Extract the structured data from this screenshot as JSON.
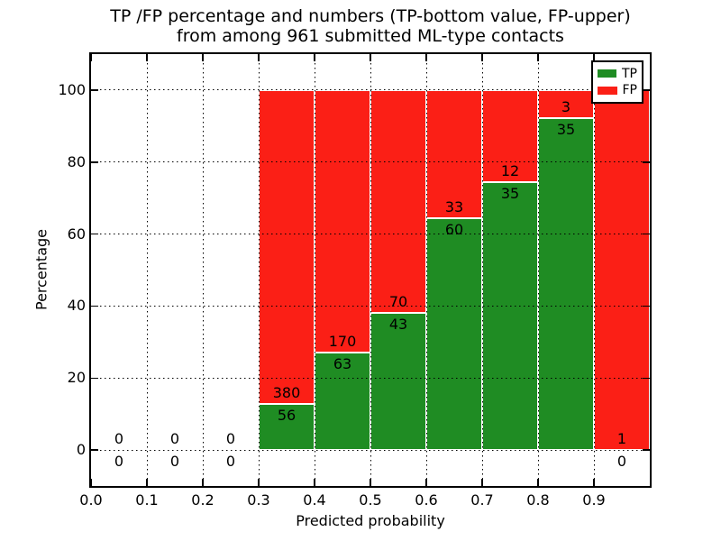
{
  "chart_data": {
    "type": "bar",
    "stacked": true,
    "normalized": "percent",
    "title_lines": [
      "TP /FP percentage and numbers (TP-bottom value, FP-upper)",
      "from among 961 submitted ML-type contacts"
    ],
    "title": "TP /FP percentage and numbers (TP-bottom value, FP-upper) from among 961 submitted ML-type contacts",
    "xlabel": "Predicted probability",
    "ylabel": "Percentage",
    "total_contacts": 961,
    "xlim": [
      0.0,
      1.0
    ],
    "ylim": [
      -10,
      110
    ],
    "bin_width": 0.1,
    "bins": [
      "0.0-0.1",
      "0.1-0.2",
      "0.2-0.3",
      "0.3-0.4",
      "0.4-0.5",
      "0.5-0.6",
      "0.6-0.7",
      "0.7-0.8",
      "0.8-0.9",
      "0.9-1.0"
    ],
    "x_ticks": [
      0.0,
      0.1,
      0.2,
      0.3,
      0.4,
      0.5,
      0.6,
      0.7,
      0.8,
      0.9
    ],
    "x_tick_labels": [
      "0.0",
      "0.1",
      "0.2",
      "0.3",
      "0.4",
      "0.5",
      "0.6",
      "0.7",
      "0.8",
      "0.9"
    ],
    "y_ticks": [
      0,
      20,
      40,
      60,
      80,
      100
    ],
    "y_tick_labels": [
      "0",
      "20",
      "40",
      "60",
      "80",
      "100"
    ],
    "grid": {
      "visible": true,
      "linestyle": "dotted",
      "color": "#000000"
    },
    "legend": {
      "position": "upper right"
    },
    "series": [
      {
        "name": "TP",
        "color": "#1f8c23",
        "counts": [
          0,
          0,
          0,
          56,
          63,
          43,
          60,
          35,
          35,
          0
        ]
      },
      {
        "name": "FP",
        "color": "#fb1f16",
        "counts": [
          0,
          0,
          0,
          380,
          170,
          70,
          33,
          12,
          3,
          1
        ]
      }
    ],
    "tp_percent_by_bin": [
      null,
      null,
      null,
      12.8,
      27.0,
      38.1,
      64.5,
      74.5,
      92.1,
      0.0
    ]
  },
  "style": {
    "background": "#ffffff",
    "spine_color": "#000000",
    "bar_edge_color": "#ffffff",
    "text_color": "#000000",
    "grid_color": "#000000"
  }
}
